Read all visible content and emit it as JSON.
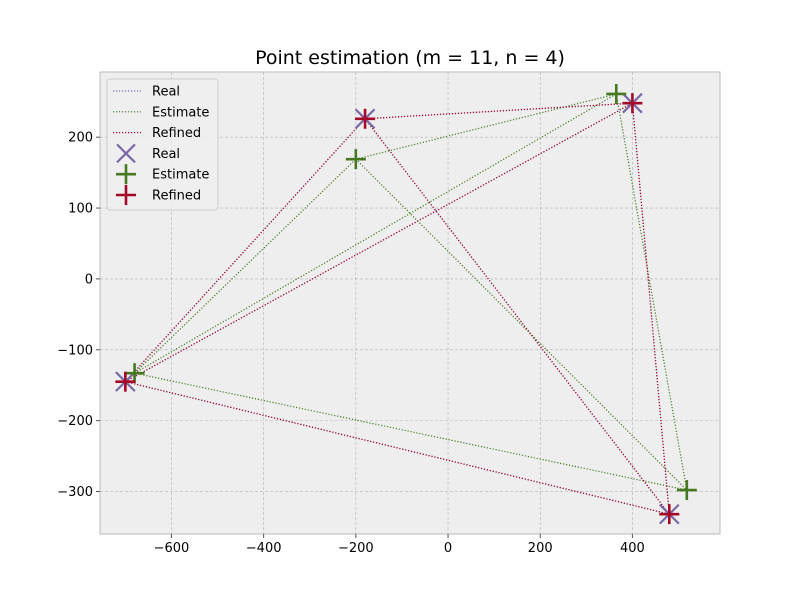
{
  "chart_data": {
    "type": "scatter",
    "title": "Point estimation (m = 11, n = 4)",
    "xlabel": "",
    "ylabel": "",
    "xlim": [
      -755,
      590
    ],
    "ylim": [
      -360,
      292
    ],
    "xticks": [
      -600,
      -400,
      -200,
      0,
      200,
      400
    ],
    "yticks": [
      -300,
      -200,
      -100,
      0,
      100,
      200
    ],
    "xtick_labels": [
      "−600",
      "−400",
      "−200",
      "0",
      "200",
      "400"
    ],
    "ytick_labels": [
      "−300",
      "−200",
      "−100",
      "0",
      "100",
      "200"
    ],
    "grid": true,
    "legend_position": "top-left",
    "background": "#eeeeee",
    "series": [
      {
        "name": "Real",
        "color": "#7a68a6",
        "marker": "x",
        "points": [
          [
            -700,
            -145
          ],
          [
            -180,
            226
          ],
          [
            400,
            248
          ],
          [
            480,
            -332
          ]
        ],
        "edges": [
          [
            0,
            1
          ],
          [
            0,
            2
          ],
          [
            0,
            3
          ],
          [
            1,
            2
          ],
          [
            1,
            3
          ],
          [
            2,
            3
          ]
        ]
      },
      {
        "name": "Estimate",
        "color": "#467821",
        "marker": "+",
        "points": [
          [
            -680,
            -133
          ],
          [
            -200,
            169
          ],
          [
            365,
            261
          ],
          [
            518,
            -298
          ]
        ],
        "edges": [
          [
            0,
            1
          ],
          [
            0,
            2
          ],
          [
            0,
            3
          ],
          [
            1,
            2
          ],
          [
            1,
            3
          ],
          [
            2,
            3
          ]
        ]
      },
      {
        "name": "Refined",
        "color": "#a60628",
        "marker": "+",
        "points": [
          [
            -700,
            -145
          ],
          [
            -180,
            226
          ],
          [
            400,
            248
          ],
          [
            480,
            -332
          ]
        ],
        "edges": [
          [
            0,
            1
          ],
          [
            0,
            2
          ],
          [
            0,
            3
          ],
          [
            1,
            2
          ],
          [
            1,
            3
          ],
          [
            2,
            3
          ]
        ]
      }
    ],
    "legend": {
      "line_entries": [
        "Real",
        "Estimate",
        "Refined"
      ],
      "marker_entries": [
        "Real",
        "Estimate",
        "Refined"
      ]
    }
  }
}
